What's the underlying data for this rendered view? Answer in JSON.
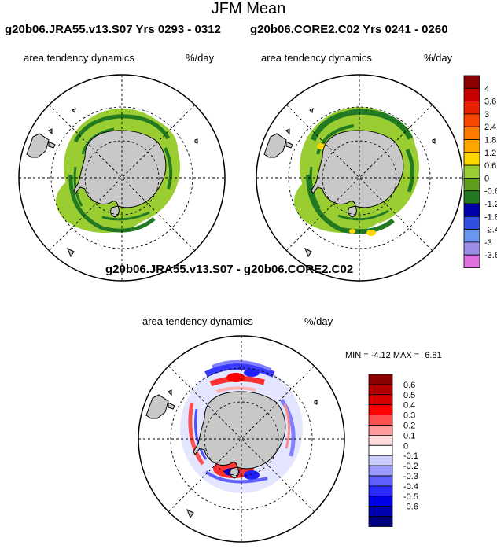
{
  "page": {
    "title": "JFM Mean"
  },
  "panels": [
    {
      "run_title": "g20b06.JRA55.v13.S07  Yrs 0293 - 0312",
      "variable": "area tendency dynamics",
      "units": "%/day"
    },
    {
      "run_title": "g20b06.CORE2.C02  Yrs 0241 - 0260",
      "variable": "area tendency dynamics",
      "units": "%/day"
    },
    {
      "run_title": "g20b06.JRA55.v13.S07 - g20b06.CORE2.C02",
      "variable": "area tendency dynamics",
      "units": "%/day",
      "min_label": "MIN =",
      "min_value": "-4.12",
      "max_label": "MAX =",
      "max_value": "6.81"
    }
  ],
  "colorbars": {
    "top": {
      "labels": [
        "4",
        "3.6",
        "3",
        "2.4",
        "1.8",
        "1.2",
        "0.6",
        "0",
        "-0.6",
        "-1.2",
        "-1.8",
        "-2.4",
        "-3",
        "-3.6"
      ],
      "colors": [
        "#8b0000",
        "#c80000",
        "#e62000",
        "#f84800",
        "#ff7a00",
        "#ffa500",
        "#ffd700",
        "#9acd32",
        "#5e9e1e",
        "#217a21",
        "#0000a8",
        "#3050e0",
        "#6a95f0",
        "#9b8ee8",
        "#e070e0"
      ]
    },
    "bottom": {
      "labels": [
        "0.6",
        "0.5",
        "0.4",
        "0.3",
        "0.2",
        "0.1",
        "0",
        "-0.1",
        "-0.2",
        "-0.3",
        "-0.4",
        "-0.5",
        "-0.6"
      ],
      "colors": [
        "#8b0000",
        "#b00000",
        "#d80000",
        "#ff0000",
        "#ff5050",
        "#ff9b9b",
        "#ffdcdc",
        "#ffffff",
        "#cdd0ff",
        "#9b9bff",
        "#6060ff",
        "#2a2aff",
        "#0000e6",
        "#0000b0",
        "#000080"
      ]
    }
  },
  "colors": {
    "land": "#c8c8c8",
    "ice_light": "#9acd32",
    "ice_dark": "#217a21",
    "ice_yellow": "#ffd700",
    "diff_red": "#ff0000",
    "diff_blue": "#0000e6"
  }
}
